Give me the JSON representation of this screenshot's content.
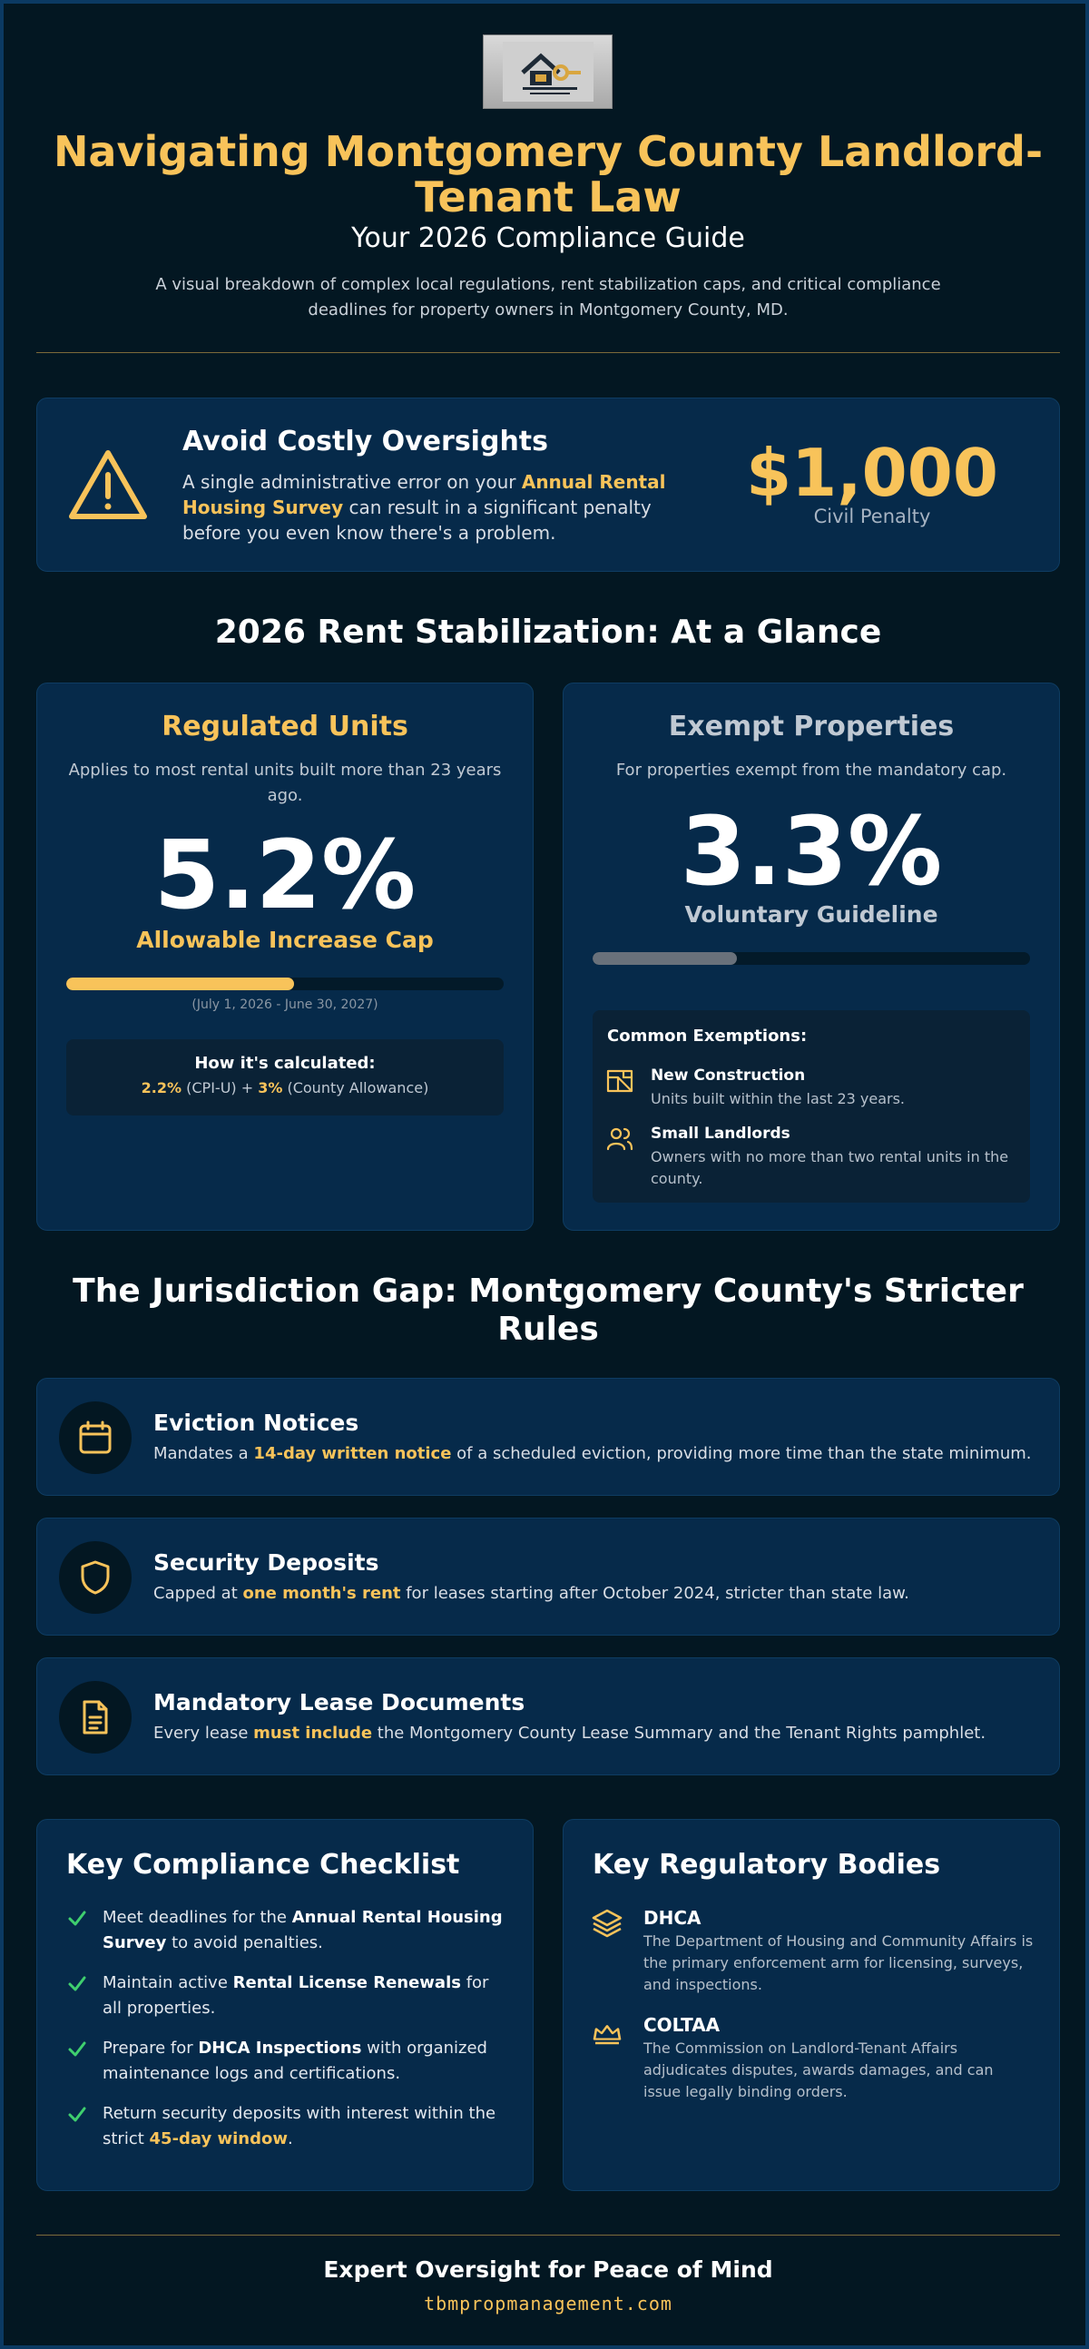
{
  "header": {
    "title": "Navigating Montgomery County Landlord-Tenant Law",
    "subtitle": "Your 2026 Compliance Guide",
    "intro": "A visual breakdown of complex local regulations, rent stabilization caps, and critical compliance deadlines for property owners in Montgomery County, MD."
  },
  "alert": {
    "icon": "warning-triangle-icon",
    "title": "Avoid Costly Oversights",
    "text_before": "A single administrative error on your ",
    "text_highlight": "Annual Rental Housing Survey",
    "text_after": " can result in a significant penalty before you even know there's a problem.",
    "amount": "$1,000",
    "amount_label": "Civil Penalty"
  },
  "rent": {
    "heading": "2026 Rent Stabilization: At a Glance",
    "regulated": {
      "title": "Regulated Units",
      "desc": "Applies to most rental units built more than 23 years ago.",
      "value": "5.2%",
      "label": "Allowable Increase Cap",
      "bar_fraction": 0.52,
      "range": "(July 1, 2026 - June 30, 2027)",
      "calc_title": "How it's calculated:",
      "calc_a": "2.2%",
      "calc_a_label": " (CPI-U) + ",
      "calc_b": "3%",
      "calc_b_label": " (County Allowance)"
    },
    "exempt": {
      "title": "Exempt Properties",
      "desc": "For properties exempt from the mandatory cap.",
      "value": "3.3%",
      "label": "Voluntary Guideline",
      "bar_fraction": 0.33,
      "exemptions_title": "Common Exemptions:",
      "exemptions": [
        {
          "icon": "blueprint-icon",
          "title": "New Construction",
          "desc": "Units built within the last 23 years."
        },
        {
          "icon": "users-icon",
          "title": "Small Landlords",
          "desc": "Owners with no more than two rental units in the county."
        }
      ]
    }
  },
  "gap": {
    "heading": "The Jurisdiction Gap: Montgomery County's Stricter Rules",
    "rules": [
      {
        "icon": "calendar-icon",
        "title": "Eviction Notices",
        "before": "Mandates a ",
        "highlight": "14-day written notice",
        "after": " of a scheduled eviction, providing more time than the state minimum."
      },
      {
        "icon": "shield-icon",
        "title": "Security Deposits",
        "before": "Capped at ",
        "highlight": "one month's rent",
        "after": " for leases starting after October 2024, stricter than state law."
      },
      {
        "icon": "document-icon",
        "title": "Mandatory Lease Documents",
        "before": "Every lease ",
        "highlight": "must include",
        "after": " the Montgomery County Lease Summary and the Tenant Rights pamphlet."
      }
    ]
  },
  "checklist": {
    "title": "Key Compliance Checklist",
    "items": [
      {
        "a": "Meet deadlines for the ",
        "b": "Annual Rental Housing Survey",
        "c": " to avoid penalties."
      },
      {
        "a": "Maintain active ",
        "b": "Rental License Renewals",
        "c": " for all properties."
      },
      {
        "a": "Prepare for ",
        "b": "DHCA Inspections",
        "c": " with organized maintenance logs and certifications."
      },
      {
        "a": "Return security deposits with interest within the strict ",
        "b": "45-day window",
        "c": "."
      }
    ]
  },
  "bodies": {
    "title": "Key Regulatory Bodies",
    "items": [
      {
        "icon": "layers-icon",
        "name": "DHCA",
        "desc": "The Department of Housing and Community Affairs is the primary enforcement arm for licensing, surveys, and inspections."
      },
      {
        "icon": "crown-icon",
        "name": "COLTAA",
        "desc": "The Commission on Landlord-Tenant Affairs adjudicates disputes, awards damages, and can issue legally binding orders."
      }
    ]
  },
  "footer": {
    "title": "Expert Oversight for Peace of Mind",
    "url": "tbmpropmanagement.com"
  },
  "colors": {
    "accent": "#f8c35a",
    "card": "#062a4a",
    "background": "#031722",
    "check": "#3fcf6e"
  }
}
